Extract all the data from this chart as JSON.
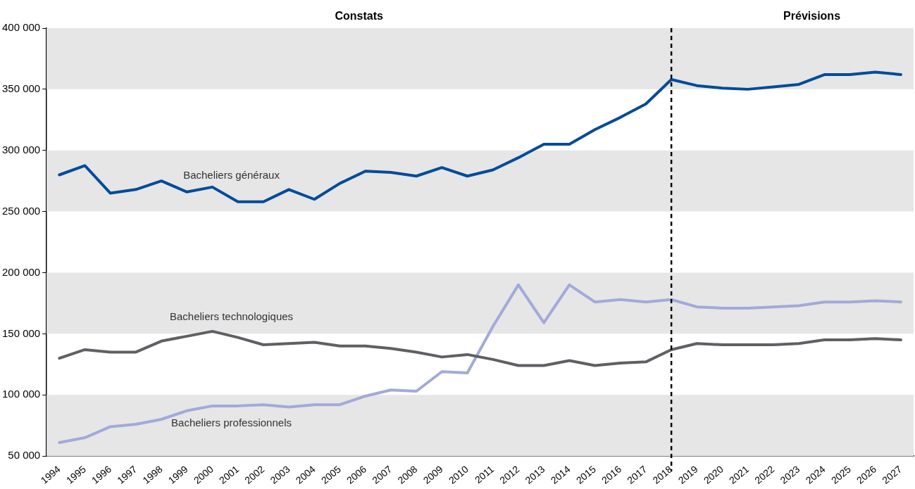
{
  "chart_data": {
    "type": "line",
    "categories": [
      "1994",
      "1995",
      "1996",
      "1997",
      "1998",
      "1999",
      "2000",
      "2001",
      "2002",
      "2003",
      "2004",
      "2005",
      "2006",
      "2007",
      "2008",
      "2009",
      "2010",
      "2011",
      "2012",
      "2013",
      "2014",
      "2015",
      "2016",
      "2017",
      "2018",
      "2019",
      "2020",
      "2021",
      "2022",
      "2023",
      "2024",
      "2025",
      "2026",
      "2027"
    ],
    "series": [
      {
        "name": "Bacheliers généraux",
        "color": "#004b9b",
        "values": [
          280000,
          287500,
          265000,
          268000,
          275000,
          266000,
          270000,
          258000,
          258000,
          268000,
          260000,
          273000,
          283000,
          282000,
          279000,
          286000,
          279000,
          284000,
          294000,
          305000,
          305000,
          317000,
          327000,
          338000,
          358000,
          353000,
          351000,
          350000,
          352000,
          354000,
          362000,
          362000,
          364000,
          362000
        ]
      },
      {
        "name": "Bacheliers technologiques",
        "color": "#5f5f64",
        "values": [
          130000,
          137000,
          135000,
          135000,
          144000,
          148000,
          152000,
          147000,
          141000,
          142000,
          143000,
          140000,
          140000,
          138000,
          135000,
          131000,
          133000,
          129000,
          124000,
          124000,
          128000,
          124000,
          126000,
          127000,
          137000,
          142000,
          141000,
          141000,
          141000,
          142000,
          145000,
          145000,
          146000,
          145000
        ]
      },
      {
        "name": "Bacheliers professionnels",
        "color": "#a1aad9",
        "values": [
          61000,
          65000,
          74000,
          76000,
          80000,
          87000,
          91000,
          91000,
          92000,
          90000,
          92000,
          92000,
          99000,
          104000,
          103000,
          119000,
          118000,
          156000,
          190000,
          159000,
          190000,
          176000,
          178000,
          176000,
          178000,
          172000,
          171000,
          171000,
          172000,
          173000,
          176000,
          176000,
          177000,
          176000
        ]
      }
    ],
    "ylim": [
      50000,
      400000
    ],
    "yticks": [
      {
        "value": 50000,
        "label": "50 000"
      },
      {
        "value": 100000,
        "label": "100 000"
      },
      {
        "value": 150000,
        "label": "150 000"
      },
      {
        "value": 200000,
        "label": "200 000"
      },
      {
        "value": 250000,
        "label": "250 000"
      },
      {
        "value": 300000,
        "label": "300 000"
      },
      {
        "value": 350000,
        "label": "350 000"
      },
      {
        "value": 400000,
        "label": "400 000"
      }
    ],
    "bands": [
      {
        "axis": "y",
        "from": 50000,
        "to": 100000,
        "color": "#e6e6e6"
      },
      {
        "axis": "y",
        "from": 150000,
        "to": 200000,
        "color": "#e6e6e6"
      },
      {
        "axis": "y",
        "from": 250000,
        "to": 300000,
        "color": "#e6e6e6"
      },
      {
        "axis": "y",
        "from": 350000,
        "to": 400000,
        "color": "#e6e6e6"
      }
    ],
    "ref_lines": [
      {
        "axis": "x",
        "value": "2018",
        "color": "#000000",
        "line_style": "dashed"
      }
    ],
    "annotations": [
      "Constats",
      "Prévisions"
    ],
    "grid": false,
    "legend": false,
    "marker": "none",
    "line_style": "solid"
  }
}
